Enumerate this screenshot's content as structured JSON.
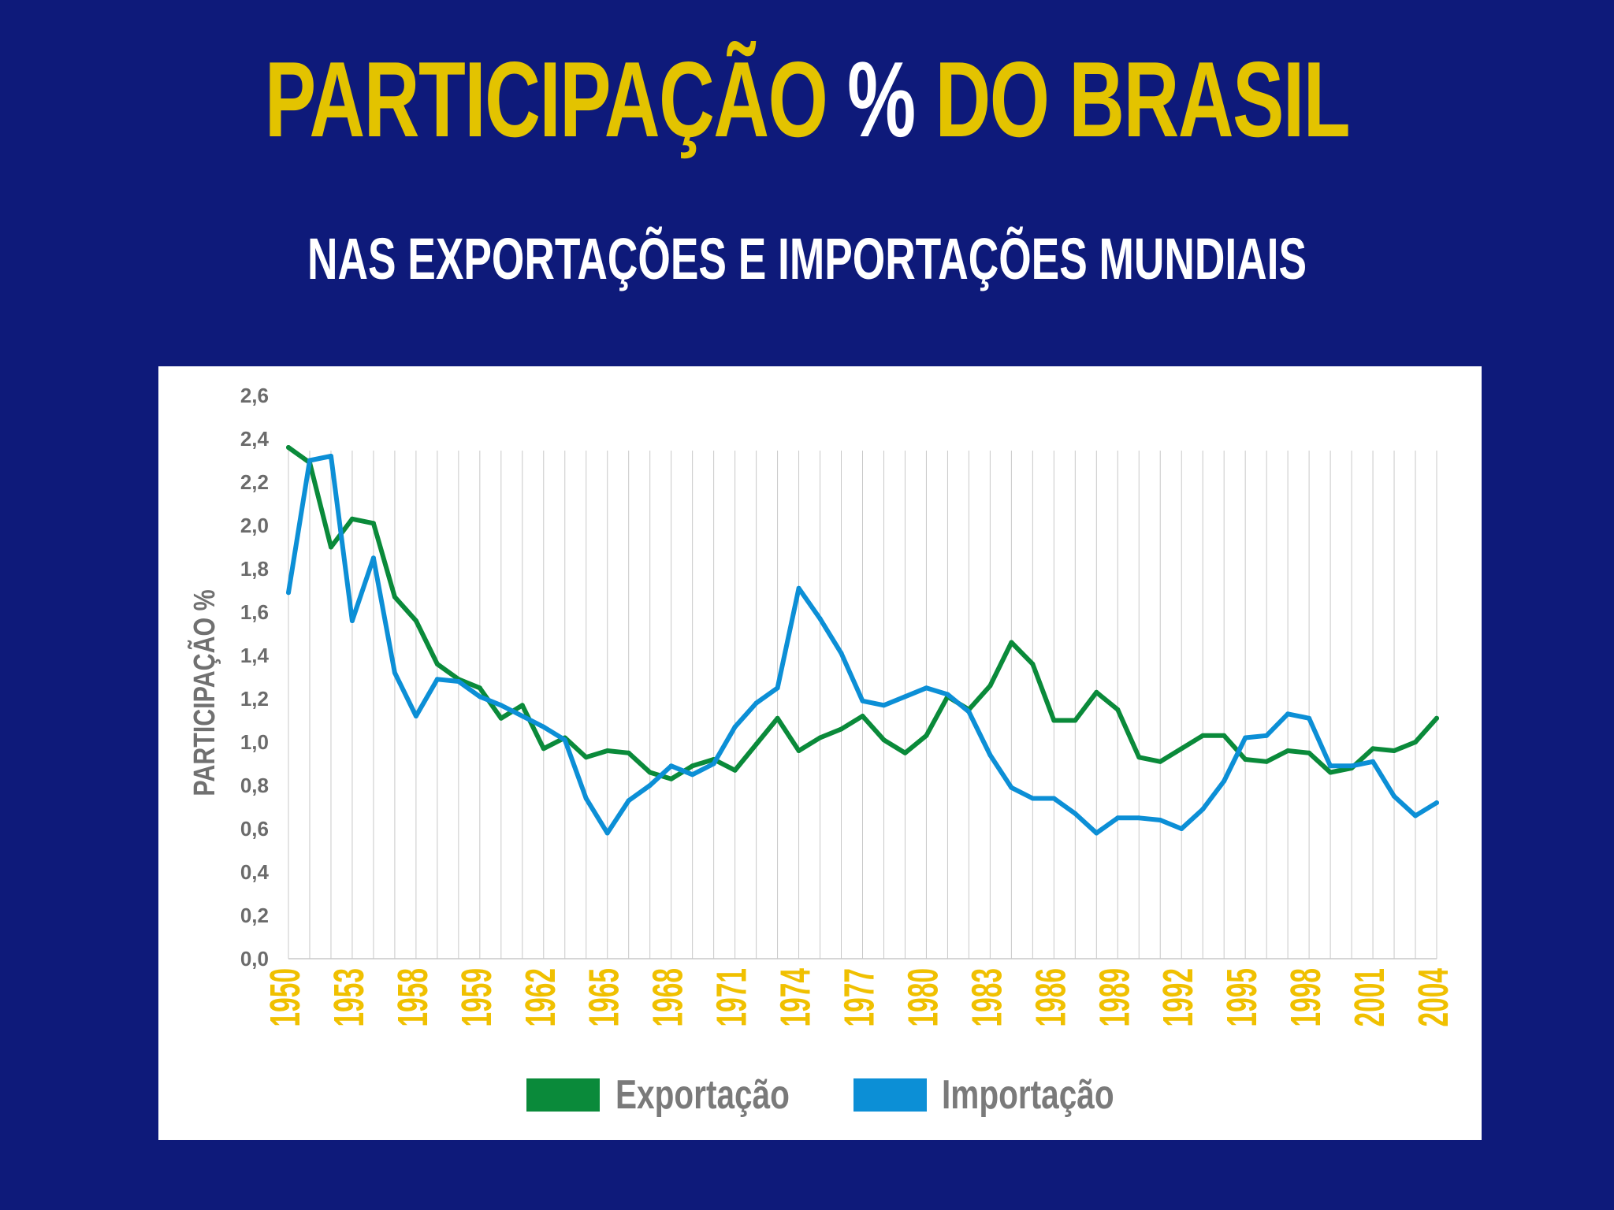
{
  "header": {
    "title_part1": "PARTICIPAÇÃO",
    "title_pct": "%",
    "title_part2": "DO BRASIL",
    "subtitle": "NAS EXPORTAÇÕES E IMPORTAÇÕES MUNDIAIS"
  },
  "colors": {
    "background": "#0e1a7a",
    "title": "#e3c300",
    "export": "#0a8a3a",
    "import": "#0c8fd6",
    "xtick": "#f0c000",
    "axis_text": "#6b6b6b"
  },
  "chart_data": {
    "type": "line",
    "title": "PARTICIPAÇÃO % DO BRASIL",
    "subtitle": "NAS EXPORTAÇÕES E IMPORTAÇÕES MUNDIAIS",
    "xlabel": "",
    "ylabel": "PARTICIPAÇÃO %",
    "ylim": [
      0,
      2.6
    ],
    "yticks": [
      "0,0",
      "0,2",
      "0,4",
      "0,6",
      "0,8",
      "1,0",
      "1,2",
      "1,4",
      "1,6",
      "1,8",
      "2,0",
      "2,2",
      "2,4",
      "2,6"
    ],
    "x_tick_labels": [
      "1950",
      "1953",
      "1958",
      "1959",
      "1962",
      "1965",
      "1968",
      "1971",
      "1974",
      "1977",
      "1980",
      "1983",
      "1986",
      "1989",
      "1992",
      "1995",
      "1998",
      "2001",
      "2004"
    ],
    "point_count": 55,
    "grid": "vertical lines at each data point",
    "legend_position": "bottom",
    "series": [
      {
        "name": "Exportação",
        "color": "#0a8a3a",
        "values": [
          2.36,
          2.29,
          1.9,
          2.03,
          2.01,
          1.67,
          1.56,
          1.36,
          1.29,
          1.25,
          1.11,
          1.17,
          0.97,
          1.02,
          0.93,
          0.96,
          0.95,
          0.86,
          0.83,
          0.89,
          0.92,
          0.87,
          0.99,
          1.11,
          0.96,
          1.02,
          1.06,
          1.12,
          1.01,
          0.95,
          1.03,
          1.21,
          1.15,
          1.26,
          1.46,
          1.36,
          1.1,
          1.1,
          1.23,
          1.15,
          0.93,
          0.91,
          0.97,
          1.03,
          1.03,
          0.92,
          0.91,
          0.96,
          0.95,
          0.86,
          0.88,
          0.97,
          0.96,
          1.0,
          1.11
        ]
      },
      {
        "name": "Importação",
        "color": "#0c8fd6",
        "values": [
          1.69,
          2.3,
          2.32,
          1.56,
          1.85,
          1.32,
          1.12,
          1.29,
          1.28,
          1.21,
          1.17,
          1.12,
          1.07,
          1.01,
          0.74,
          0.58,
          0.73,
          0.8,
          0.89,
          0.85,
          0.9,
          1.07,
          1.18,
          1.25,
          1.71,
          1.57,
          1.41,
          1.19,
          1.17,
          1.21,
          1.25,
          1.22,
          1.14,
          0.94,
          0.79,
          0.74,
          0.74,
          0.67,
          0.58,
          0.65,
          0.65,
          0.64,
          0.6,
          0.69,
          0.82,
          1.02,
          1.03,
          1.13,
          1.11,
          0.89,
          0.89,
          0.91,
          0.75,
          0.66,
          0.72
        ]
      }
    ]
  }
}
